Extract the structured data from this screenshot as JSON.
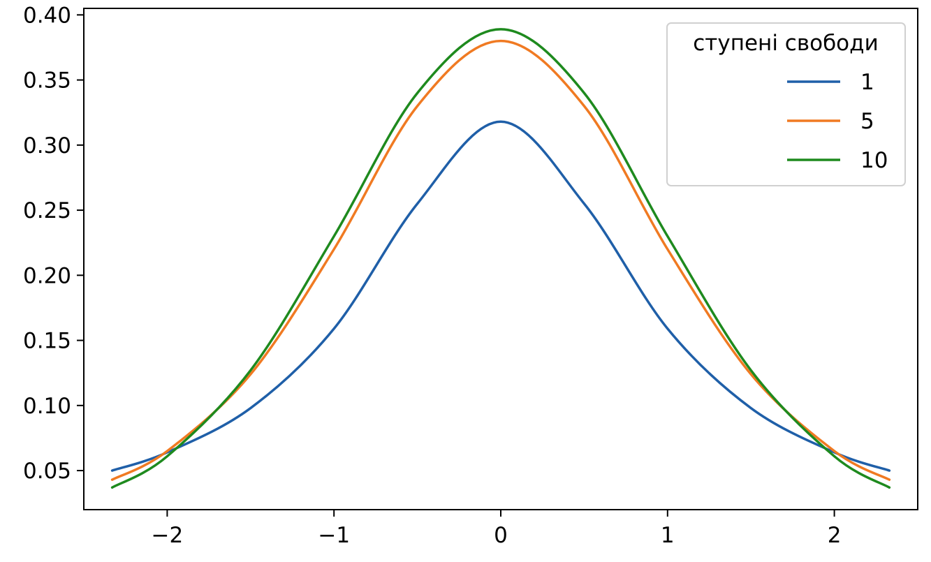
{
  "chart_data": {
    "type": "line",
    "title": "",
    "xlabel": "",
    "ylabel": "",
    "xlim": [
      -2.5,
      2.5
    ],
    "ylim": [
      0.02,
      0.405
    ],
    "xticks": [
      -2,
      -1,
      0,
      1,
      2
    ],
    "xtick_labels": [
      "−2",
      "−1",
      "0",
      "1",
      "2"
    ],
    "yticks": [
      0.05,
      0.1,
      0.15,
      0.2,
      0.25,
      0.3,
      0.35,
      0.4
    ],
    "ytick_labels": [
      "0.05",
      "0.10",
      "0.15",
      "0.20",
      "0.25",
      "0.30",
      "0.35",
      "0.40"
    ],
    "grid": false,
    "legend": {
      "title": "ступені свободи",
      "position": "top-right"
    },
    "x": [
      -2.33,
      -2.0,
      -1.5,
      -1.0,
      -0.5,
      0.0,
      0.5,
      1.0,
      1.5,
      2.0,
      2.33
    ],
    "series": [
      {
        "name": "1",
        "color": "#1f5fa8",
        "values": [
          0.05,
          0.064,
          0.098,
          0.159,
          0.255,
          0.318,
          0.255,
          0.159,
          0.098,
          0.064,
          0.05
        ]
      },
      {
        "name": "5",
        "color": "#f07a22",
        "values": [
          0.043,
          0.065,
          0.124,
          0.22,
          0.33,
          0.38,
          0.33,
          0.22,
          0.124,
          0.065,
          0.043
        ]
      },
      {
        "name": "10",
        "color": "#1e8a1e",
        "values": [
          0.037,
          0.061,
          0.127,
          0.23,
          0.34,
          0.389,
          0.34,
          0.23,
          0.127,
          0.061,
          0.037
        ]
      }
    ]
  }
}
